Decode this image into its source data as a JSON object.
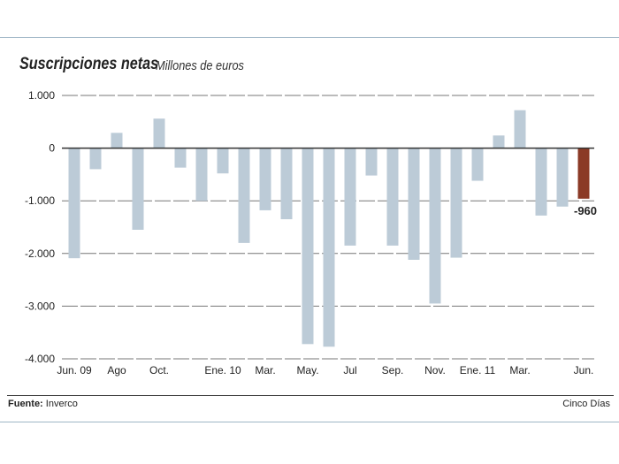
{
  "chart_data": {
    "type": "bar",
    "title": "Suscripciones netas",
    "subtitle": "Millones de euros",
    "ylim": [
      -4000,
      1000
    ],
    "yticks": [
      1000,
      0,
      -1000,
      -2000,
      -3000,
      -4000
    ],
    "ytick_labels": [
      "1.000",
      "0",
      "-1.000",
      "-2.000",
      "-3.000",
      "-4.000"
    ],
    "grid": true,
    "xtick_labels": [
      {
        "index": 0,
        "label": "Jun. 09"
      },
      {
        "index": 2,
        "label": "Ago"
      },
      {
        "index": 4,
        "label": "Oct."
      },
      {
        "index": 7,
        "label": "Ene. 10"
      },
      {
        "index": 9,
        "label": "Mar."
      },
      {
        "index": 11,
        "label": "May."
      },
      {
        "index": 13,
        "label": "Jul"
      },
      {
        "index": 15,
        "label": "Sep."
      },
      {
        "index": 17,
        "label": "Nov."
      },
      {
        "index": 19,
        "label": "Ene. 11"
      },
      {
        "index": 21,
        "label": "Mar."
      },
      {
        "index": 24,
        "label": "Jun."
      }
    ],
    "values": [
      -2090,
      -400,
      290,
      -1550,
      560,
      -370,
      -1000,
      -480,
      -1800,
      -1180,
      -1350,
      -3720,
      -3770,
      -1850,
      -520,
      -1850,
      -2120,
      -2950,
      -2080,
      -620,
      240,
      720,
      -1280,
      -1110,
      -960
    ],
    "bar_color": "#bccbd7",
    "highlight_color": "#8b3a26",
    "highlight_index": 24,
    "highlight_label": "-960"
  },
  "footer": {
    "source_label": "Fuente:",
    "source": "Inverco",
    "credit": "Cinco Días"
  }
}
